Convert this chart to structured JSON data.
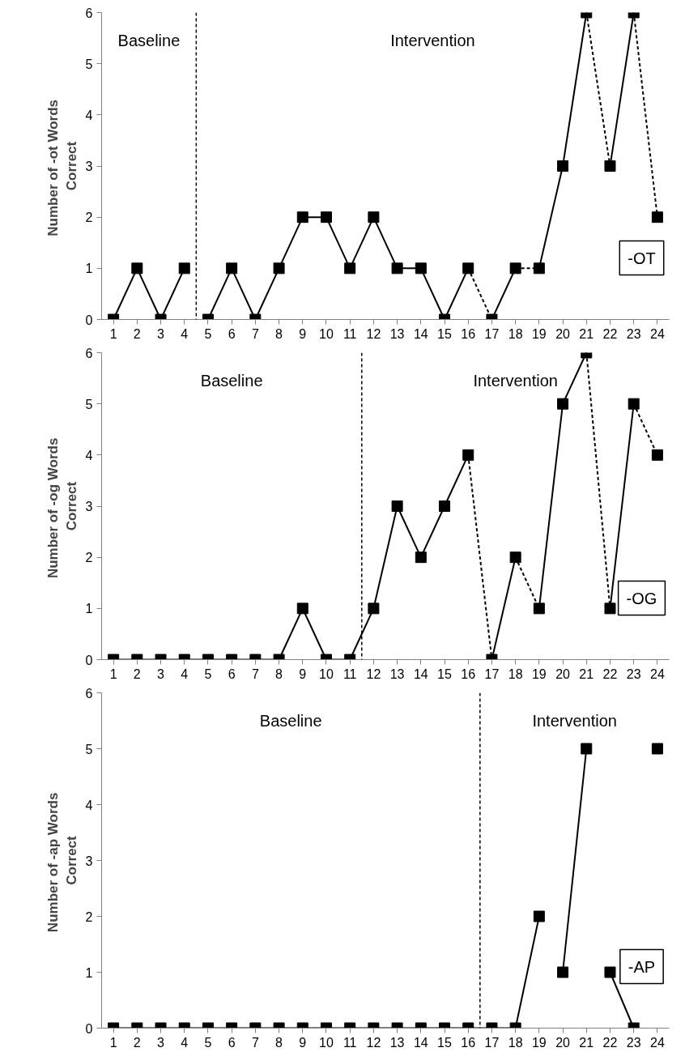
{
  "chart_data": [
    {
      "type": "line",
      "ylabel": "Number of  -ot Words\nCorrect",
      "xlim": [
        0.5,
        24.5
      ],
      "xticks": [
        1,
        2,
        3,
        4,
        5,
        6,
        7,
        8,
        9,
        10,
        11,
        12,
        13,
        14,
        15,
        16,
        17,
        18,
        19,
        20,
        21,
        22,
        23,
        24
      ],
      "ylim": [
        0,
        6
      ],
      "yticks": [
        0,
        1,
        2,
        3,
        4,
        5,
        6
      ],
      "grid": false,
      "marker": "square",
      "ref_lines": [
        {
          "axis": "x",
          "value": 4.5,
          "line_style": "dashed",
          "color": "#000000"
        }
      ],
      "annotations": [
        "Baseline",
        "Intervention",
        "-OT"
      ],
      "series": [
        {
          "type": "scatter",
          "color": "#000000",
          "x": [
            1,
            2,
            3,
            4,
            5,
            6,
            7,
            8,
            9,
            10,
            11,
            12,
            13,
            14,
            15,
            16,
            17,
            18,
            19,
            20,
            21,
            22,
            23,
            24
          ],
          "values": [
            0,
            1,
            0,
            1,
            0,
            1,
            0,
            1,
            2,
            2,
            1,
            2,
            1,
            1,
            0,
            1,
            0,
            1,
            1,
            3,
            6,
            3,
            6,
            2
          ]
        },
        {
          "color": "#000000",
          "marker": "none",
          "line_style": "solid",
          "x": [
            1,
            2,
            3,
            4
          ],
          "values": [
            0,
            1,
            0,
            1
          ]
        },
        {
          "color": "#000000",
          "marker": "none",
          "line_style": "solid",
          "x": [
            5,
            6,
            7,
            8,
            9,
            10,
            11,
            12,
            13,
            14,
            15,
            16
          ],
          "values": [
            0,
            1,
            0,
            1,
            2,
            2,
            1,
            2,
            1,
            1,
            0,
            1
          ]
        },
        {
          "color": "#000000",
          "marker": "none",
          "line_style": "dashed",
          "x": [
            16,
            17
          ],
          "values": [
            1,
            0
          ]
        },
        {
          "color": "#000000",
          "marker": "none",
          "line_style": "solid",
          "x": [
            17,
            18
          ],
          "values": [
            0,
            1
          ]
        },
        {
          "color": "#000000",
          "marker": "none",
          "line_style": "dashed",
          "x": [
            18,
            19
          ],
          "values": [
            1,
            1
          ]
        },
        {
          "color": "#000000",
          "marker": "none",
          "line_style": "solid",
          "x": [
            19,
            20,
            21
          ],
          "values": [
            1,
            3,
            6
          ]
        },
        {
          "color": "#000000",
          "marker": "none",
          "line_style": "dashed",
          "x": [
            21,
            22
          ],
          "values": [
            6,
            3
          ]
        },
        {
          "color": "#000000",
          "marker": "none",
          "line_style": "solid",
          "x": [
            22,
            23
          ],
          "values": [
            3,
            6
          ]
        },
        {
          "color": "#000000",
          "marker": "none",
          "line_style": "dashed",
          "x": [
            23,
            24
          ],
          "values": [
            6,
            2
          ]
        }
      ]
    },
    {
      "type": "line",
      "ylabel": "Number of  -og Words\nCorrect",
      "xlim": [
        0.5,
        24.5
      ],
      "xticks": [
        1,
        2,
        3,
        4,
        5,
        6,
        7,
        8,
        9,
        10,
        11,
        12,
        13,
        14,
        15,
        16,
        17,
        18,
        19,
        20,
        21,
        22,
        23,
        24
      ],
      "ylim": [
        0,
        6
      ],
      "yticks": [
        0,
        1,
        2,
        3,
        4,
        5,
        6
      ],
      "grid": false,
      "marker": "square",
      "ref_lines": [
        {
          "axis": "x",
          "value": 11.5,
          "line_style": "dashed",
          "color": "#000000"
        }
      ],
      "annotations": [
        "Baseline",
        "Intervention",
        "-OG"
      ],
      "series": [
        {
          "type": "scatter",
          "color": "#000000",
          "x": [
            1,
            2,
            3,
            4,
            5,
            6,
            7,
            8,
            9,
            10,
            11,
            12,
            13,
            14,
            15,
            16,
            17,
            18,
            19,
            20,
            21,
            22,
            23,
            24
          ],
          "values": [
            0,
            0,
            0,
            0,
            0,
            0,
            0,
            0,
            1,
            0,
            0,
            1,
            3,
            2,
            3,
            4,
            0,
            2,
            1,
            5,
            6,
            1,
            5,
            4
          ]
        },
        {
          "color": "#000000",
          "marker": "none",
          "line_style": "solid",
          "x": [
            1,
            2,
            3,
            4,
            5,
            6,
            7,
            8,
            9,
            10,
            11,
            12,
            13,
            14,
            15,
            16
          ],
          "values": [
            0,
            0,
            0,
            0,
            0,
            0,
            0,
            0,
            1,
            0,
            0,
            1,
            3,
            2,
            3,
            4
          ]
        },
        {
          "color": "#000000",
          "marker": "none",
          "line_style": "dashed",
          "x": [
            16,
            17
          ],
          "values": [
            4,
            0
          ]
        },
        {
          "color": "#000000",
          "marker": "none",
          "line_style": "solid",
          "x": [
            17,
            18
          ],
          "values": [
            0,
            2
          ]
        },
        {
          "color": "#000000",
          "marker": "none",
          "line_style": "dashed",
          "x": [
            18,
            19
          ],
          "values": [
            2,
            1
          ]
        },
        {
          "color": "#000000",
          "marker": "none",
          "line_style": "solid",
          "x": [
            19,
            20,
            21
          ],
          "values": [
            1,
            5,
            6
          ]
        },
        {
          "color": "#000000",
          "marker": "none",
          "line_style": "dashed",
          "x": [
            21,
            22
          ],
          "values": [
            6,
            1
          ]
        },
        {
          "color": "#000000",
          "marker": "none",
          "line_style": "solid",
          "x": [
            22,
            23
          ],
          "values": [
            1,
            5
          ]
        },
        {
          "color": "#000000",
          "marker": "none",
          "line_style": "dashed",
          "x": [
            23,
            24
          ],
          "values": [
            5,
            4
          ]
        }
      ]
    },
    {
      "type": "line",
      "ylabel": "Number of  -ap Words\nCorrect",
      "xlim": [
        0.5,
        24.5
      ],
      "xticks": [
        1,
        2,
        3,
        4,
        5,
        6,
        7,
        8,
        9,
        10,
        11,
        12,
        13,
        14,
        15,
        16,
        17,
        18,
        19,
        20,
        21,
        22,
        23,
        24
      ],
      "ylim": [
        0,
        6
      ],
      "yticks": [
        0,
        1,
        2,
        3,
        4,
        5,
        6
      ],
      "grid": false,
      "marker": "square",
      "ref_lines": [
        {
          "axis": "x",
          "value": 16.5,
          "line_style": "dashed",
          "color": "#000000"
        }
      ],
      "annotations": [
        "Baseline",
        "Intervention",
        "-AP"
      ],
      "series": [
        {
          "type": "scatter",
          "color": "#000000",
          "x": [
            1,
            2,
            3,
            4,
            5,
            6,
            7,
            8,
            9,
            10,
            11,
            12,
            13,
            14,
            15,
            16,
            17,
            18,
            19,
            20,
            21,
            22,
            23,
            24
          ],
          "values": [
            0,
            0,
            0,
            0,
            0,
            0,
            0,
            0,
            0,
            0,
            0,
            0,
            0,
            0,
            0,
            0,
            0,
            0,
            2,
            1,
            5,
            1,
            0,
            5
          ]
        },
        {
          "color": "#000000",
          "marker": "none",
          "line_style": "solid",
          "x": [
            1,
            2,
            3,
            4,
            5,
            6,
            7,
            8,
            9,
            10,
            11,
            12,
            13,
            14,
            15,
            16,
            17,
            18,
            19
          ],
          "values": [
            0,
            0,
            0,
            0,
            0,
            0,
            0,
            0,
            0,
            0,
            0,
            0,
            0,
            0,
            0,
            0,
            0,
            0,
            2
          ]
        },
        {
          "color": "#000000",
          "marker": "none",
          "line_style": "solid",
          "x": [
            20,
            21
          ],
          "values": [
            1,
            5
          ]
        },
        {
          "color": "#000000",
          "marker": "none",
          "line_style": "solid",
          "x": [
            22,
            23
          ],
          "values": [
            1,
            0
          ]
        }
      ]
    }
  ]
}
